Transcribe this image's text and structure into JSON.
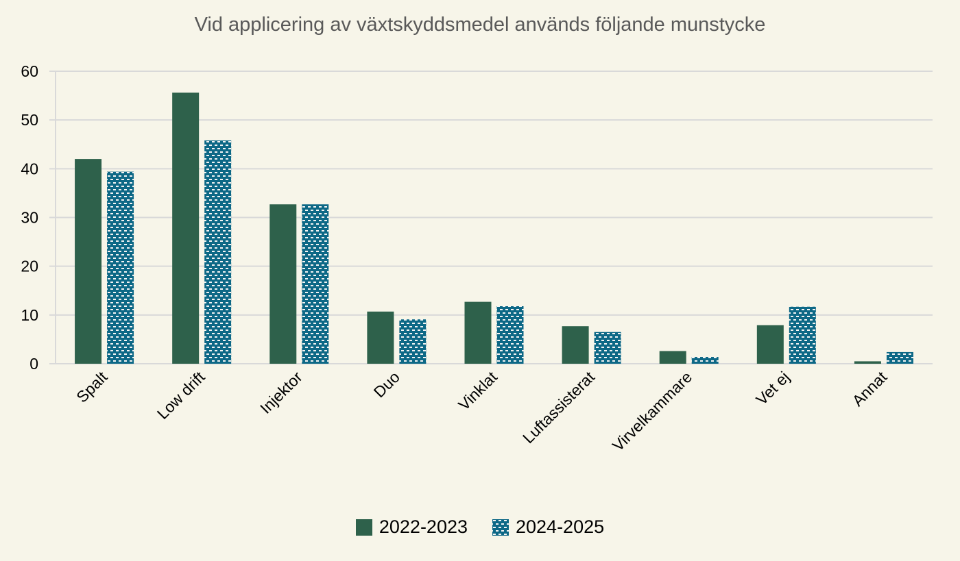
{
  "title": "Vid applicering av växtskyddsmedel används följande munstycke",
  "legend": {
    "series_a": "2022-2023",
    "series_b": "2024-2025"
  },
  "colors": {
    "background": "#f7f5e9",
    "series_a": "#2e614b",
    "series_b": "#0d6886",
    "gridline": "#d9d9d9",
    "title": "#595959"
  },
  "chart_data": {
    "type": "bar",
    "title": "Vid applicering av växtskyddsmedel används följande munstycke",
    "xlabel": "",
    "ylabel": "",
    "ylim": [
      0,
      60
    ],
    "yticks": [
      0,
      10,
      20,
      30,
      40,
      50,
      60
    ],
    "grid": true,
    "legend_position": "bottom",
    "categories": [
      "Spalt",
      "Low drift",
      "Injektor",
      "Duo",
      "Vinklat",
      "Luftassisterat",
      "Virvelkammare",
      "Vet ej",
      "Annat"
    ],
    "series": [
      {
        "name": "2022-2023",
        "values": [
          42.0,
          55.6,
          32.7,
          10.7,
          12.7,
          7.7,
          2.6,
          7.9,
          0.5
        ]
      },
      {
        "name": "2024-2025",
        "values": [
          39.4,
          45.8,
          32.7,
          9.1,
          11.8,
          6.5,
          1.4,
          11.7,
          2.4
        ]
      }
    ]
  }
}
